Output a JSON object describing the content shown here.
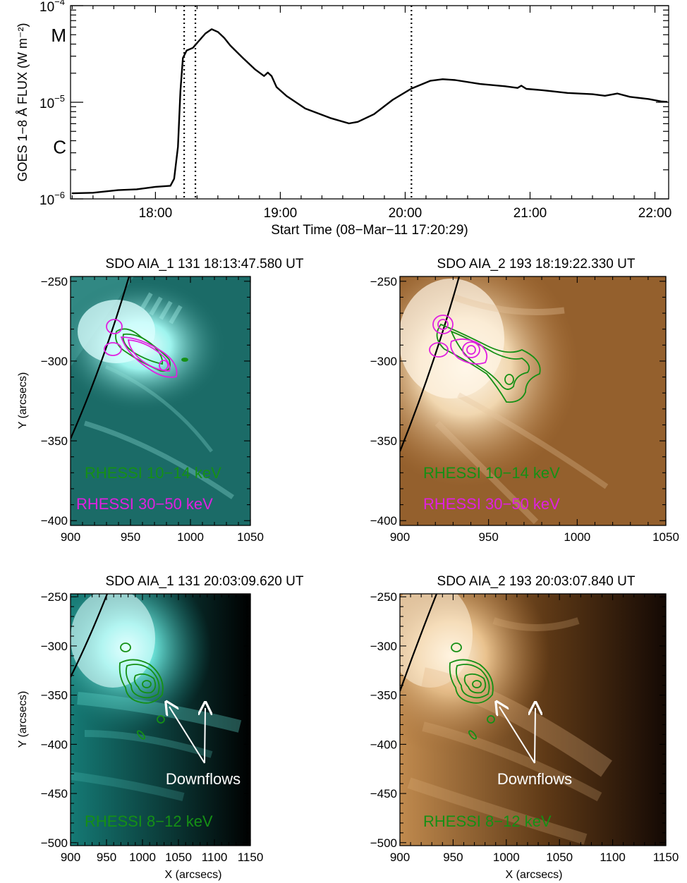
{
  "chart_data": [
    {
      "type": "line",
      "id": "goes",
      "xlabel": "Start Time (08−Mar−11 17:20:29)",
      "ylabel": "GOES 1−8 Å FLUX (W m⁻²)",
      "yscale": "log",
      "xlim_hours": [
        17.32,
        22.11
      ],
      "ylim": [
        1e-06,
        0.0001
      ],
      "x_ticks": [
        "18:00",
        "19:00",
        "20:00",
        "21:00",
        "22:00"
      ],
      "x_tick_hours": [
        18,
        19,
        20,
        21,
        22
      ],
      "y_tick_labels": [
        {
          "base": "10",
          "exp": "−4",
          "value": 0.0001
        },
        {
          "base": "10",
          "exp": "−5",
          "value": 1e-05
        },
        {
          "base": "10",
          "exp": "−6",
          "value": 1e-06
        }
      ],
      "class_labels": [
        {
          "label": "M",
          "value": 5e-05
        },
        {
          "label": "C",
          "value": 3.5e-06
        }
      ],
      "vlines_hours": [
        18.23,
        18.32,
        20.05
      ],
      "series": [
        {
          "x": [
            17.33,
            17.5,
            17.7,
            17.85,
            18.0,
            18.12,
            18.15,
            18.18,
            18.2,
            18.22,
            18.25,
            18.3,
            18.35,
            18.4,
            18.45,
            18.5,
            18.55,
            18.6,
            18.7,
            18.8,
            18.87,
            18.9,
            18.93,
            18.97,
            19.05,
            19.2,
            19.4,
            19.55,
            19.62,
            19.75,
            19.9,
            20.05,
            20.2,
            20.3,
            20.4,
            20.6,
            20.8,
            20.9,
            20.93,
            20.97,
            21.1,
            21.3,
            21.5,
            21.6,
            21.7,
            21.8,
            21.95,
            22.05,
            22.1
          ],
          "y": [
            1.13e-06,
            1.17e-06,
            1.22e-06,
            1.27e-06,
            1.32e-06,
            1.38e-06,
            1.6e-06,
            3.5e-06,
            1.3e-05,
            2.9e-05,
            3.4e-05,
            3.7e-05,
            4.3e-05,
            5.2e-05,
            5.65e-05,
            5.4e-05,
            4.6e-05,
            3.9e-05,
            2.85e-05,
            2.2e-05,
            1.85e-05,
            2.05e-05,
            1.85e-05,
            1.45e-05,
            1.15e-05,
            8.7e-06,
            6.8e-06,
            6.1e-06,
            6.2e-06,
            7.6e-06,
            1.05e-05,
            1.4e-05,
            1.65e-05,
            1.75e-05,
            1.68e-05,
            1.56e-05,
            1.45e-05,
            1.42e-05,
            1.47e-05,
            1.39e-05,
            1.32e-05,
            1.26e-05,
            1.2e-05,
            1.18e-05,
            1.22e-05,
            1.15e-05,
            1.07e-05,
            1.03e-05,
            1e-05
          ]
        }
      ]
    },
    {
      "type": "image",
      "id": "p1",
      "title": "SDO AIA_1 131 18:13:47.580 UT",
      "ylabel": "Y (arcsecs)",
      "xlabel": "",
      "xlim": [
        900,
        1050
      ],
      "ylim": [
        -403,
        -247
      ],
      "x_ticks": [
        900,
        950,
        1000,
        1050
      ],
      "y_ticks": [
        -250,
        -300,
        -350,
        -400
      ],
      "colormap": "teal",
      "legend": [
        {
          "text": "RHESSI 10−14 keV",
          "color": "#159015"
        },
        {
          "text": "RHESSI 30−50 keV",
          "color": "#e020e0"
        }
      ]
    },
    {
      "type": "image",
      "id": "p2",
      "title": "SDO AIA_2 193 18:19:22.330 UT",
      "ylabel": "",
      "xlabel": "",
      "xlim": [
        900,
        1050
      ],
      "ylim": [
        -403,
        -247
      ],
      "x_ticks": [
        900,
        950,
        1000,
        1050
      ],
      "y_ticks": [
        -250,
        -300,
        -350,
        -400
      ],
      "colormap": "brown",
      "legend": [
        {
          "text": "RHESSI 10−14 keV",
          "color": "#159015"
        },
        {
          "text": "RHESSI 30−50 keV",
          "color": "#e020e0"
        }
      ]
    },
    {
      "type": "image",
      "id": "p3",
      "title": "SDO AIA_1 131 20:03:09.620 UT",
      "ylabel": "Y (arcsecs)",
      "xlabel": "X (arcsecs)",
      "xlim": [
        900,
        1150
      ],
      "ylim": [
        -503,
        -247
      ],
      "x_ticks": [
        900,
        950,
        1000,
        1050,
        1100,
        1150
      ],
      "y_ticks": [
        -250,
        -300,
        -350,
        -400,
        -450,
        -500
      ],
      "colormap": "teal",
      "annotation": "Downflows",
      "legend": [
        {
          "text": "RHESSI 8−12 keV",
          "color": "#159015"
        }
      ]
    },
    {
      "type": "image",
      "id": "p4",
      "title": "SDO AIA_2 193 20:03:07.840 UT",
      "ylabel": "",
      "xlabel": "X (arcsecs)",
      "xlim": [
        900,
        1150
      ],
      "ylim": [
        -503,
        -247
      ],
      "x_ticks": [
        900,
        950,
        1000,
        1050,
        1100,
        1150
      ],
      "y_ticks": [
        -250,
        -300,
        -350,
        -400,
        -450,
        -500
      ],
      "colormap": "brown",
      "annotation": "Downflows",
      "legend": [
        {
          "text": "RHESSI 8−12 keV",
          "color": "#159015"
        }
      ]
    }
  ]
}
